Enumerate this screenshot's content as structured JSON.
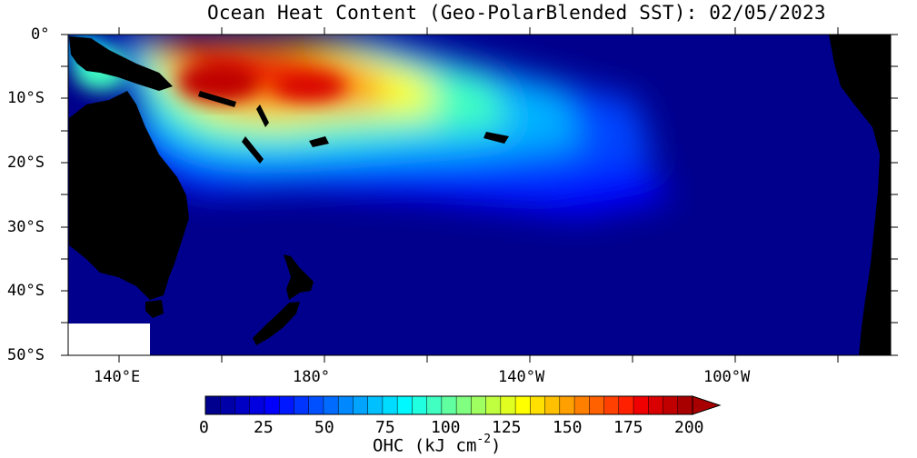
{
  "title": "Ocean Heat Content (Geo-PolarBlended SST): 02/05/2023",
  "map": {
    "region": "Southwest Pacific",
    "lat_labels": [
      "0°",
      "10°S",
      "20°S",
      "30°S",
      "40°S",
      "50°S"
    ],
    "lon_labels": [
      "140°E",
      "180°",
      "140°W",
      "100°W"
    ],
    "land_color": "#000000",
    "nodata_color": "#ffffff",
    "ocean_base_color": "#00008c"
  },
  "colorbar": {
    "ticks": [
      "0",
      "25",
      "50",
      "75",
      "100",
      "125",
      "150",
      "175",
      "200"
    ],
    "label_main": "OHC (kJ cm",
    "label_exp": "-2",
    "label_close": ")",
    "min": 0,
    "max": 200,
    "extend": "max",
    "colors": [
      "#00008f",
      "#0000a8",
      "#0000c4",
      "#0000e0",
      "#0000fc",
      "#0018ff",
      "#0034ff",
      "#0050ff",
      "#006cff",
      "#0088ff",
      "#00a4ff",
      "#00c0ff",
      "#00dcff",
      "#00f8ff",
      "#20ffe0",
      "#40ffc0",
      "#60ffa0",
      "#80ff80",
      "#a0ff60",
      "#c0ff40",
      "#e0ff20",
      "#ffff00",
      "#ffe000",
      "#ffc000",
      "#ffa000",
      "#ff8000",
      "#ff6000",
      "#ff4000",
      "#ff2000",
      "#f00000",
      "#d80000",
      "#c00000",
      "#a80000"
    ]
  }
}
